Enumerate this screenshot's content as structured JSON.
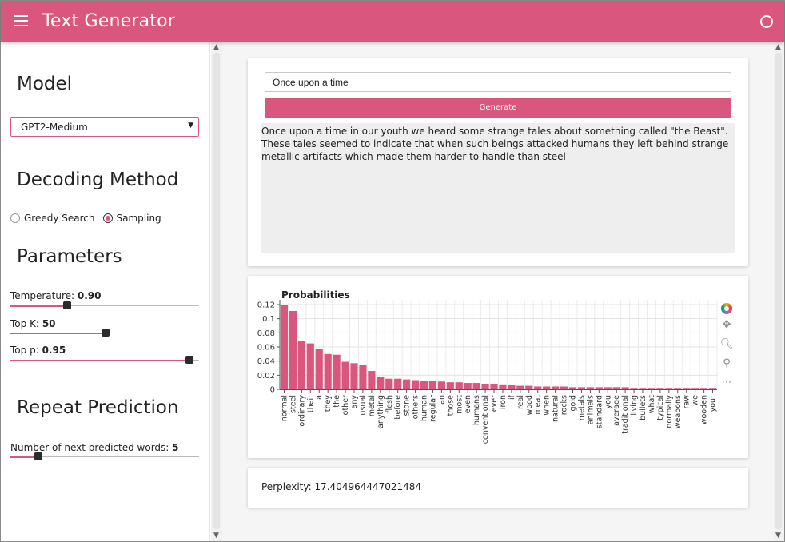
{
  "header": {
    "title": "Text Generator"
  },
  "sidebar": {
    "model_heading": "Model",
    "model_selected": "GPT2-Medium",
    "decoding_heading": "Decoding Method",
    "decoding_options": [
      {
        "label": "Greedy Search",
        "checked": false
      },
      {
        "label": "Sampling",
        "checked": true
      }
    ],
    "parameters_heading": "Parameters",
    "temperature": {
      "label": "Temperature:",
      "value": "0.90",
      "fraction": 0.3
    },
    "top_k": {
      "label": "Top K:",
      "value": "50",
      "fraction": 0.505
    },
    "top_p": {
      "label": "Top p:",
      "value": "0.95",
      "fraction": 0.95
    },
    "repeat_heading": "Repeat Prediction",
    "next_words": {
      "label": "Number of next predicted words:",
      "value": "5",
      "fraction": 0.15
    }
  },
  "generator": {
    "prompt": "Once upon a time",
    "generate_label": "Generate",
    "output": "Once upon a time in our youth we heard some strange tales about something called \"the Beast\". These tales seemed to indicate that when such beings attacked humans they left behind strange metallic artifacts which made them harder to handle than steel"
  },
  "chart_data": {
    "type": "bar",
    "title": "Probabilities",
    "ylim": [
      0,
      0.12
    ],
    "yticks": [
      "0.12",
      "0.1",
      "0.08",
      "0.06",
      "0.04",
      "0.02",
      "0"
    ],
    "grid": true,
    "color": "#d9577e",
    "categories": [
      "normal",
      "steel",
      "ordinary",
      "their",
      "a",
      "they",
      "the",
      "other",
      "any",
      "usual",
      "metal",
      "anything",
      "flesh",
      "before",
      "stone",
      "others",
      "human",
      "regular",
      "an",
      "those",
      "most",
      "even",
      "humans",
      "conventional",
      "ever",
      "iron",
      "if",
      "real",
      "wood",
      "meat",
      "when",
      "natural",
      "rocks",
      "gold",
      "metals",
      "animals",
      "standard",
      "you",
      "average",
      "traditional",
      "living",
      "bullets",
      "what",
      "typical",
      "normally",
      "weapons",
      "raw",
      "we",
      "wooden",
      "your"
    ],
    "values": [
      0.12,
      0.111,
      0.069,
      0.065,
      0.057,
      0.05,
      0.049,
      0.039,
      0.037,
      0.034,
      0.026,
      0.017,
      0.015,
      0.015,
      0.014,
      0.013,
      0.012,
      0.012,
      0.011,
      0.01,
      0.01,
      0.009,
      0.009,
      0.008,
      0.008,
      0.007,
      0.006,
      0.005,
      0.005,
      0.004,
      0.004,
      0.004,
      0.004,
      0.003,
      0.003,
      0.003,
      0.003,
      0.003,
      0.003,
      0.003,
      0.002,
      0.002,
      0.002,
      0.002,
      0.002,
      0.002,
      0.002,
      0.002,
      0.002,
      0.002
    ]
  },
  "perplexity": {
    "text": "Perplexity: 17.404964447021484"
  }
}
